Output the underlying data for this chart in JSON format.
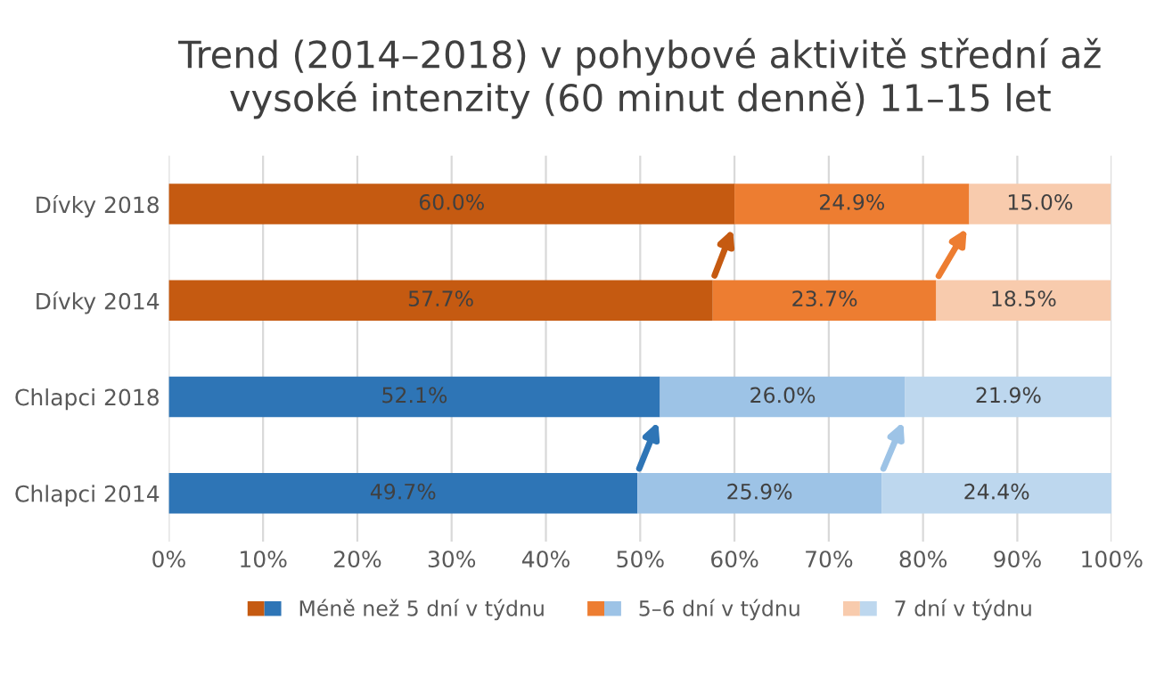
{
  "chart_data": {
    "type": "bar",
    "orientation": "horizontal",
    "stacked": true,
    "title": "Trend (2014–2018) v pohybové aktivitě střední až\nvysoké intenzity (60 minut denně) 11–15 let",
    "categories": [
      "Dívky 2018",
      "Dívky 2014",
      "Chlapci 2018",
      "Chlapci 2014"
    ],
    "series": [
      {
        "name": "Méně než 5 dní v týdnu",
        "colors": [
          "#c55a11",
          "#c55a11",
          "#2e75b6",
          "#2e75b6"
        ],
        "values": [
          60.0,
          57.7,
          52.1,
          49.7
        ],
        "value_labels": [
          "60.0%",
          "57.7%",
          "52.1%",
          "49.7%"
        ]
      },
      {
        "name": "5–6 dní v týdnu",
        "colors": [
          "#ed7d31",
          "#ed7d31",
          "#9dc3e6",
          "#9dc3e6"
        ],
        "values": [
          24.9,
          23.7,
          26.0,
          25.9
        ],
        "value_labels": [
          "24.9%",
          "23.7%",
          "26.0%",
          "25.9%"
        ]
      },
      {
        "name": "7 dní v týdnu",
        "colors": [
          "#f8cbad",
          "#f8cbad",
          "#bdd7ee",
          "#bdd7ee"
        ],
        "values": [
          15.0,
          18.5,
          21.9,
          24.4
        ],
        "value_labels": [
          "15.0%",
          "18.5%",
          "21.9%",
          "24.4%"
        ]
      }
    ],
    "xlim": [
      0,
      100
    ],
    "xticks": [
      {
        "value": 0,
        "label": "0%"
      },
      {
        "value": 10,
        "label": "10%"
      },
      {
        "value": 20,
        "label": "20%"
      },
      {
        "value": 30,
        "label": "30%"
      },
      {
        "value": 40,
        "label": "40%"
      },
      {
        "value": 50,
        "label": "50%"
      },
      {
        "value": 60,
        "label": "60%"
      },
      {
        "value": 70,
        "label": "70%"
      },
      {
        "value": 80,
        "label": "80%"
      },
      {
        "value": 90,
        "label": "90%"
      },
      {
        "value": 100,
        "label": "100%"
      }
    ],
    "grid": "x",
    "legend": "bottom"
  }
}
